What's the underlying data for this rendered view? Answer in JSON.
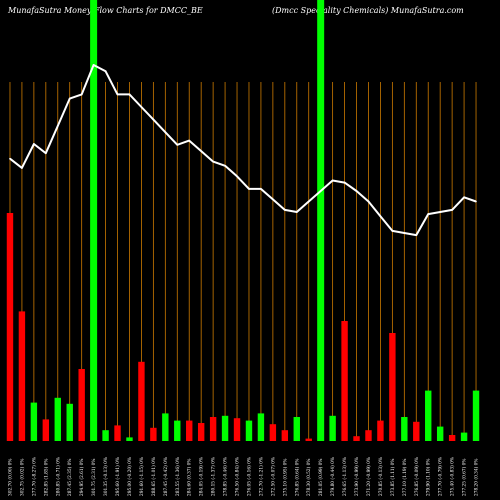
{
  "header": {
    "left_title": "MunafaSutra  Money Flow  Charts for DMCC_BE",
    "right_title": "(Dmcc Speciality Chemicals) MunafaSutra.com"
  },
  "colors": {
    "background": "#000000",
    "up_bar": "#00ff00",
    "down_bar": "#ff0000",
    "price_line": "#ffffff",
    "grid_line": "#cc7a00",
    "highlight_band": "#00ff00"
  },
  "chart_data": {
    "type": "bar",
    "title": "MunafaSutra  Money Flow  Charts for DMCC_BE",
    "subtitle": "(Dmcc Speciality Chemicals) MunafaSutra.com",
    "categories": [
      "302.70 (0.00) 0%",
      "302.75 (0.02) 0%",
      "277.70 (-8.27) 0%",
      "282.85 (1.85) 0%",
      "280.85 (-0.71) 0%",
      "287.45 (2.35) 0%",
      "294.95 (2.61) 0%",
      "301.75 (2.31) 0%",
      "301.35 (-0.13) 0%",
      "295.60 (-1.91) 0%",
      "295.00 (-0.20) 0%",
      "291.60 (-1.15) 0%",
      "288.65 (-1.01) 0%",
      "287.45 (-0.42) 0%",
      "283.55 (-1.36) 0%",
      "284.60 (0.37) 0%",
      "284.05 (-0.19) 0%",
      "280.15 (-1.37) 0%",
      "278.85 (-0.46) 0%",
      "276.50 (-0.84) 0%",
      "276.05 (-0.16) 0%",
      "272.70 (-1.21) 0%",
      "272.50 (-0.07) 0%",
      "275.10 (0.95) 0%",
      "276.85 (0.64) 0%",
      "278.30 (0.52) 0%",
      "281.05 (0.99) 0%",
      "279.80 (-0.44) 0%",
      "276.65 (-1.13) 0%",
      "273.90 (-0.99) 0%",
      "271.20 (-0.99) 0%",
      "270.85 (-0.13) 0%",
      "273.85 (1.11) 0%",
      "277.10 (1.19) 0%",
      "276.85 (-0.09) 0%",
      "279.90 (1.10) 0%",
      "277.70 (-0.79) 0%",
      "275.40 (-0.83) 0%",
      "277.25 (0.67) 0%",
      "278.20 (0.34) 0%"
    ],
    "series": [
      {
        "values": [
          190,
          108,
          32,
          18,
          36,
          31,
          60,
          98,
          9,
          13,
          3,
          66,
          11,
          23,
          17,
          17,
          15,
          20,
          21,
          19,
          17,
          23,
          14,
          9,
          20,
          2,
          37,
          21,
          100,
          4,
          9,
          17,
          90,
          20,
          16,
          42,
          12,
          5,
          7,
          42
        ],
        "colors": [
          "down",
          "down",
          "up",
          "down",
          "up",
          "up",
          "down",
          "up",
          "up",
          "down",
          "up",
          "down",
          "down",
          "up",
          "up",
          "down",
          "down",
          "down",
          "up",
          "down",
          "up",
          "up",
          "down",
          "down",
          "up",
          "down",
          "up",
          "up",
          "down",
          "down",
          "down",
          "down",
          "down",
          "up",
          "down",
          "up",
          "up",
          "down",
          "up",
          "up"
        ]
      },
      {
        "values": [
          302.7,
          300.5,
          306.2,
          304.0,
          310.5,
          317.0,
          318.0,
          325.0,
          323.5,
          318.0,
          318.0,
          315.0,
          312.0,
          309.0,
          306.0,
          307.0,
          304.5,
          302.0,
          301.0,
          298.5,
          295.5,
          295.5,
          293.0,
          290.5,
          290.0,
          292.5,
          295.0,
          297.5,
          297.0,
          295.0,
          292.5,
          289.0,
          285.5,
          285.0,
          284.5,
          289.5,
          290.0,
          290.5,
          293.5,
          292.5
        ]
      }
    ],
    "bar_ylim": [
      0,
      200
    ],
    "price_ylim": [
      260,
      330
    ],
    "grid": true,
    "legend": "none",
    "highlight_bands": [
      7,
      26
    ]
  }
}
